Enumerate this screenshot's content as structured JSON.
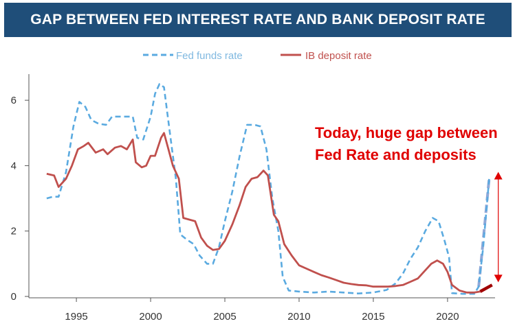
{
  "title": "GAP BETWEEN FED INTEREST RATE AND BANK DEPOSIT RATE",
  "annotation": {
    "line1": "Today, huge gap between",
    "line2": "Fed Rate and deposits",
    "color": "#e00000"
  },
  "chart_data": {
    "type": "line",
    "title": "GAP BETWEEN FED INTEREST RATE AND BANK DEPOSIT RATE",
    "xlabel": "",
    "ylabel": "",
    "xlim": [
      1991.8,
      2023.2
    ],
    "ylim": [
      0,
      6.8
    ],
    "x_ticks": [
      1995,
      2000,
      2005,
      2010,
      2015,
      2020
    ],
    "y_ticks": [
      0,
      2,
      4,
      6
    ],
    "grid": false,
    "legend_position": "top-center",
    "series": [
      {
        "name": "Fed funds rate",
        "style": "dashed",
        "color": "#5aaae0",
        "points": [
          [
            1993.0,
            3.0
          ],
          [
            1993.4,
            3.05
          ],
          [
            1993.8,
            3.05
          ],
          [
            1994.3,
            3.8
          ],
          [
            1994.8,
            5.2
          ],
          [
            1995.2,
            5.95
          ],
          [
            1995.6,
            5.8
          ],
          [
            1996.0,
            5.4
          ],
          [
            1996.5,
            5.28
          ],
          [
            1997.0,
            5.25
          ],
          [
            1997.4,
            5.5
          ],
          [
            1997.9,
            5.5
          ],
          [
            1998.4,
            5.5
          ],
          [
            1998.8,
            5.5
          ],
          [
            1999.1,
            4.85
          ],
          [
            1999.5,
            4.8
          ],
          [
            2000.0,
            5.5
          ],
          [
            2000.3,
            6.2
          ],
          [
            2000.6,
            6.5
          ],
          [
            2000.9,
            6.4
          ],
          [
            2001.3,
            5.0
          ],
          [
            2001.7,
            3.6
          ],
          [
            2002.0,
            1.9
          ],
          [
            2002.4,
            1.75
          ],
          [
            2002.9,
            1.6
          ],
          [
            2003.3,
            1.25
          ],
          [
            2003.8,
            1.0
          ],
          [
            2004.2,
            1.0
          ],
          [
            2004.6,
            1.5
          ],
          [
            2005.0,
            2.3
          ],
          [
            2005.5,
            3.2
          ],
          [
            2006.0,
            4.3
          ],
          [
            2006.5,
            5.25
          ],
          [
            2007.0,
            5.25
          ],
          [
            2007.4,
            5.2
          ],
          [
            2007.8,
            4.5
          ],
          [
            2008.2,
            3.0
          ],
          [
            2008.6,
            2.0
          ],
          [
            2008.9,
            0.6
          ],
          [
            2009.3,
            0.18
          ],
          [
            2010.0,
            0.15
          ],
          [
            2011.0,
            0.12
          ],
          [
            2012.0,
            0.15
          ],
          [
            2013.0,
            0.12
          ],
          [
            2014.0,
            0.09
          ],
          [
            2015.0,
            0.12
          ],
          [
            2015.9,
            0.2
          ],
          [
            2016.5,
            0.4
          ],
          [
            2017.0,
            0.7
          ],
          [
            2017.5,
            1.15
          ],
          [
            2018.0,
            1.5
          ],
          [
            2018.5,
            2.0
          ],
          [
            2019.0,
            2.4
          ],
          [
            2019.4,
            2.3
          ],
          [
            2019.8,
            1.7
          ],
          [
            2020.1,
            1.2
          ],
          [
            2020.3,
            0.1
          ],
          [
            2021.0,
            0.08
          ],
          [
            2021.8,
            0.08
          ],
          [
            2022.1,
            0.3
          ],
          [
            2022.4,
            1.5
          ],
          [
            2022.8,
            3.6
          ]
        ]
      },
      {
        "name": "IB deposit rate",
        "style": "solid",
        "color": "#c0504d",
        "points": [
          [
            1993.0,
            3.75
          ],
          [
            1993.5,
            3.7
          ],
          [
            1993.8,
            3.35
          ],
          [
            1994.3,
            3.6
          ],
          [
            1994.7,
            4.0
          ],
          [
            1995.1,
            4.5
          ],
          [
            1995.5,
            4.6
          ],
          [
            1995.8,
            4.7
          ],
          [
            1996.3,
            4.4
          ],
          [
            1996.8,
            4.5
          ],
          [
            1997.1,
            4.35
          ],
          [
            1997.6,
            4.55
          ],
          [
            1998.0,
            4.6
          ],
          [
            1998.4,
            4.5
          ],
          [
            1998.8,
            4.8
          ],
          [
            1999.0,
            4.1
          ],
          [
            1999.4,
            3.95
          ],
          [
            1999.7,
            4.0
          ],
          [
            2000.0,
            4.3
          ],
          [
            2000.3,
            4.3
          ],
          [
            2000.7,
            4.85
          ],
          [
            2000.9,
            5.0
          ],
          [
            2001.2,
            4.5
          ],
          [
            2001.5,
            4.0
          ],
          [
            2001.9,
            3.6
          ],
          [
            2002.2,
            2.4
          ],
          [
            2002.6,
            2.35
          ],
          [
            2003.0,
            2.3
          ],
          [
            2003.4,
            1.8
          ],
          [
            2003.8,
            1.55
          ],
          [
            2004.2,
            1.42
          ],
          [
            2004.6,
            1.45
          ],
          [
            2005.0,
            1.7
          ],
          [
            2005.5,
            2.2
          ],
          [
            2006.0,
            2.8
          ],
          [
            2006.4,
            3.35
          ],
          [
            2006.8,
            3.6
          ],
          [
            2007.2,
            3.65
          ],
          [
            2007.6,
            3.85
          ],
          [
            2007.9,
            3.7
          ],
          [
            2008.3,
            2.5
          ],
          [
            2008.6,
            2.3
          ],
          [
            2009.0,
            1.6
          ],
          [
            2009.5,
            1.25
          ],
          [
            2010.0,
            0.95
          ],
          [
            2010.5,
            0.85
          ],
          [
            2011.0,
            0.75
          ],
          [
            2011.5,
            0.65
          ],
          [
            2012.0,
            0.58
          ],
          [
            2012.5,
            0.5
          ],
          [
            2013.0,
            0.42
          ],
          [
            2013.5,
            0.38
          ],
          [
            2014.0,
            0.35
          ],
          [
            2014.5,
            0.34
          ],
          [
            2015.0,
            0.3
          ],
          [
            2015.5,
            0.3
          ],
          [
            2016.0,
            0.3
          ],
          [
            2016.5,
            0.32
          ],
          [
            2017.0,
            0.35
          ],
          [
            2017.5,
            0.45
          ],
          [
            2018.0,
            0.55
          ],
          [
            2018.5,
            0.8
          ],
          [
            2018.9,
            1.0
          ],
          [
            2019.3,
            1.1
          ],
          [
            2019.7,
            1.0
          ],
          [
            2020.0,
            0.75
          ],
          [
            2020.3,
            0.35
          ],
          [
            2020.8,
            0.18
          ],
          [
            2021.3,
            0.12
          ],
          [
            2021.8,
            0.12
          ],
          [
            2022.2,
            0.15
          ]
        ]
      },
      {
        "name": "",
        "style": "dashed-thick",
        "color": "#8fa8d8",
        "points": [
          [
            2022.1,
            0.3
          ],
          [
            2022.8,
            3.6
          ]
        ]
      },
      {
        "name": "",
        "style": "thick",
        "color": "#a00000",
        "points": [
          [
            2022.2,
            0.15
          ],
          [
            2023.0,
            0.35
          ]
        ]
      }
    ],
    "gap_marker": {
      "from": 0.35,
      "to": 3.6,
      "x": 2023.0,
      "color": "#e00000"
    }
  }
}
